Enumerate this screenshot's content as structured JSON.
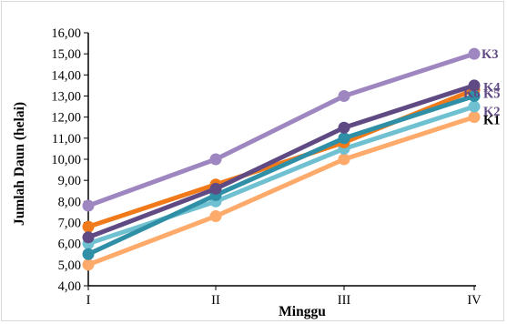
{
  "chart_data": {
    "type": "line",
    "title": "",
    "xlabel": "Minggu",
    "ylabel": "Jumlah Daun (helai)",
    "categories": [
      "I",
      "II",
      "III",
      "IV"
    ],
    "ylim": [
      4.0,
      16.0
    ],
    "ytick_step": 1.0,
    "ytick_labels": [
      "4,00",
      "5,00",
      "6,00",
      "7,00",
      "8,00",
      "9,00",
      "10,00",
      "11,00",
      "12,00",
      "13,00",
      "14,00",
      "15,00",
      "16,00"
    ],
    "grid": false,
    "legend": "none",
    "series": [
      {
        "name": "K1",
        "color": "#FDAA6A",
        "values": [
          5.0,
          7.3,
          10.0,
          12.0
        ]
      },
      {
        "name": "K2",
        "color": "#6FC0D0",
        "values": [
          6.0,
          8.0,
          10.5,
          12.5
        ]
      },
      {
        "name": "K3",
        "color": "#9E86C0",
        "values": [
          7.8,
          10.0,
          13.0,
          15.0
        ]
      },
      {
        "name": "K4",
        "color": "#F07A1A",
        "values": [
          6.8,
          8.8,
          10.8,
          13.3
        ]
      },
      {
        "name": "K5",
        "color": "#2F8FA6",
        "values": [
          5.5,
          8.3,
          11.0,
          13.0
        ]
      },
      {
        "name": "K6",
        "color": "#604A84",
        "values": [
          6.3,
          8.6,
          11.5,
          13.5
        ]
      }
    ],
    "end_labels": [
      {
        "text": "K3",
        "series": "K3",
        "color": "#604A84"
      },
      {
        "text": "K6",
        "series": "K6",
        "color": "#604A84"
      },
      {
        "text": "K4",
        "series": "K4",
        "color": "#604A84"
      },
      {
        "text": "K5",
        "series": "K5",
        "color": "#604A84"
      },
      {
        "text": "K2",
        "series": "K2",
        "color": "#604A84"
      },
      {
        "text": "K1",
        "series": "K1",
        "color": "#000000"
      }
    ]
  }
}
